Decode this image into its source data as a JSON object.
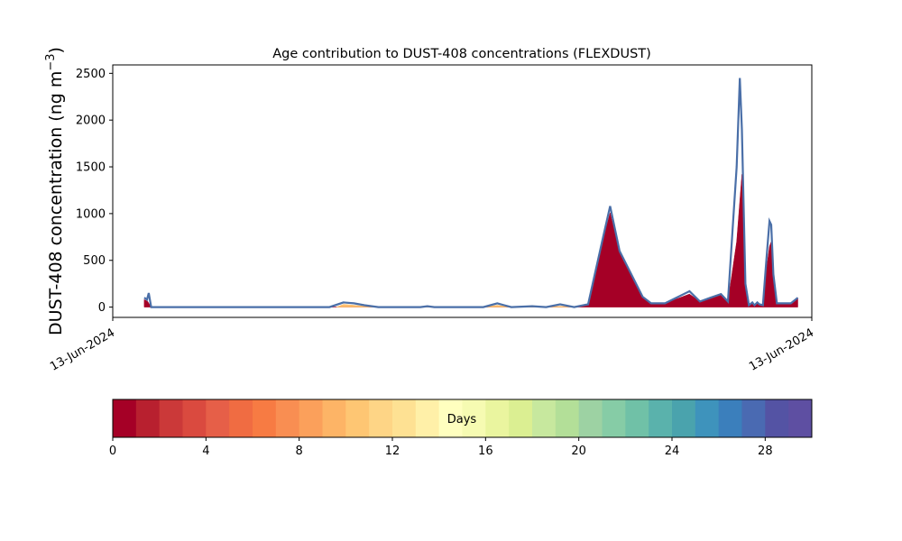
{
  "chart_data": {
    "type": "area",
    "title": "Age contribution to DUST-408 concentrations (FLEXDUST)",
    "ylabel_main": "DUST-408 concentration (ng m",
    "ylabel_sup": "−3",
    "ylabel_close": ")",
    "xlabel": "",
    "x_ticks": [
      "13-Jun-2024",
      "13-Jun-2024"
    ],
    "ylim": [
      -110,
      2590
    ],
    "y_ticks": [
      0,
      500,
      1000,
      1500,
      2000,
      2500
    ],
    "x_domain": [
      0,
      1
    ],
    "grid": false,
    "series": [
      {
        "color": "#a50026",
        "points": [
          [
            0.045,
            80
          ],
          [
            0.05,
            60
          ],
          [
            0.055,
            0
          ],
          [
            0.3,
            0
          ],
          [
            0.65,
            0
          ],
          [
            0.66,
            0
          ],
          [
            0.68,
            20
          ],
          [
            0.7,
            680
          ],
          [
            0.7115,
            1010
          ],
          [
            0.725,
            580
          ],
          [
            0.758,
            100
          ],
          [
            0.77,
            40
          ],
          [
            0.79,
            40
          ],
          [
            0.825,
            140
          ],
          [
            0.84,
            60
          ],
          [
            0.855,
            90
          ],
          [
            0.87,
            130
          ],
          [
            0.88,
            60
          ],
          [
            0.8925,
            700
          ],
          [
            0.9,
            1420
          ],
          [
            0.905,
            200
          ],
          [
            0.91,
            20
          ],
          [
            0.915,
            50
          ],
          [
            0.918,
            20
          ],
          [
            0.922,
            50
          ],
          [
            0.925,
            30
          ],
          [
            0.93,
            20
          ],
          [
            0.935,
            400
          ],
          [
            0.9395,
            650
          ],
          [
            0.942,
            700
          ],
          [
            0.945,
            300
          ],
          [
            0.95,
            40
          ],
          [
            0.96,
            40
          ],
          [
            0.97,
            40
          ],
          [
            0.98,
            100
          ]
        ]
      },
      {
        "color": "#fdbf6f",
        "points": [
          [
            0.32,
            0
          ],
          [
            0.33,
            30
          ],
          [
            0.345,
            20
          ],
          [
            0.36,
            10
          ],
          [
            0.38,
            0
          ],
          [
            0.53,
            0
          ],
          [
            0.55,
            20
          ],
          [
            0.56,
            10
          ],
          [
            0.57,
            0
          ],
          [
            0.62,
            0
          ],
          [
            0.64,
            10
          ],
          [
            0.66,
            0
          ]
        ]
      },
      {
        "color": "#4a6fa8",
        "points": [
          [
            0.045,
            100
          ],
          [
            0.049,
            80
          ],
          [
            0.0515,
            150
          ],
          [
            0.055,
            0
          ],
          [
            0.31,
            0
          ],
          [
            0.33,
            50
          ],
          [
            0.345,
            40
          ],
          [
            0.36,
            20
          ],
          [
            0.38,
            0
          ],
          [
            0.44,
            0
          ],
          [
            0.45,
            10
          ],
          [
            0.46,
            0
          ],
          [
            0.53,
            0
          ],
          [
            0.55,
            40
          ],
          [
            0.56,
            20
          ],
          [
            0.57,
            0
          ],
          [
            0.6,
            10
          ],
          [
            0.62,
            0
          ],
          [
            0.64,
            30
          ],
          [
            0.66,
            0
          ],
          [
            0.68,
            30
          ],
          [
            0.7,
            700
          ],
          [
            0.7115,
            1080
          ],
          [
            0.725,
            600
          ],
          [
            0.758,
            110
          ],
          [
            0.77,
            40
          ],
          [
            0.79,
            40
          ],
          [
            0.825,
            170
          ],
          [
            0.84,
            60
          ],
          [
            0.855,
            100
          ],
          [
            0.87,
            140
          ],
          [
            0.88,
            60
          ],
          [
            0.8925,
            1500
          ],
          [
            0.897,
            2450
          ],
          [
            0.9,
            1900
          ],
          [
            0.905,
            250
          ],
          [
            0.91,
            20
          ],
          [
            0.915,
            50
          ],
          [
            0.918,
            20
          ],
          [
            0.922,
            50
          ],
          [
            0.925,
            30
          ],
          [
            0.93,
            20
          ],
          [
            0.935,
            500
          ],
          [
            0.9395,
            920
          ],
          [
            0.942,
            880
          ],
          [
            0.945,
            350
          ],
          [
            0.95,
            40
          ],
          [
            0.96,
            40
          ],
          [
            0.97,
            40
          ],
          [
            0.98,
            100
          ]
        ]
      }
    ],
    "colorbar": {
      "label": "Days",
      "min": 0,
      "max": 30,
      "ticks": [
        0,
        4,
        8,
        12,
        16,
        20,
        24,
        28
      ],
      "colors": [
        "#a50026",
        "#b8202f",
        "#cb3939",
        "#da4a3f",
        "#e65f48",
        "#f06c42",
        "#f77b43",
        "#f98e52",
        "#fba05b",
        "#fdb466",
        "#fec673",
        "#fed586",
        "#fee193",
        "#fff0a8",
        "#ffffbf",
        "#f6fbb2",
        "#eaf59f",
        "#dbef92",
        "#c7e89e",
        "#b3df98",
        "#9dd2a3",
        "#86cca6",
        "#70c1a7",
        "#5ab2ac",
        "#4aa3ad",
        "#3e93bc",
        "#3b7fbc",
        "#4a6ab2",
        "#5453a4",
        "#5e4fa2"
      ]
    }
  }
}
